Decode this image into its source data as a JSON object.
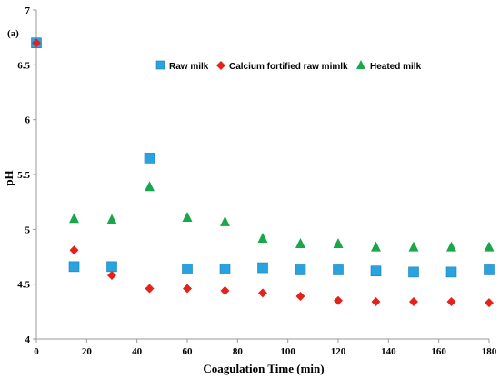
{
  "chart_data": {
    "type": "scatter",
    "panel_label": "(a)",
    "xlabel": "Coagulation Time (min)",
    "ylabel": "pH",
    "xlim": [
      0,
      180
    ],
    "ylim": [
      4,
      7
    ],
    "xticks": [
      0,
      20,
      40,
      60,
      80,
      100,
      120,
      140,
      160,
      180
    ],
    "yticks": [
      4,
      4.5,
      5,
      5.5,
      6,
      6.5,
      7
    ],
    "grid": false,
    "legend_position": "top",
    "series": [
      {
        "name": "Raw milk",
        "marker": "square",
        "color": "#29a3e0",
        "x": [
          0,
          15,
          30,
          45,
          60,
          75,
          90,
          105,
          120,
          135,
          150,
          165,
          180
        ],
        "y": [
          6.7,
          4.66,
          4.66,
          5.65,
          4.64,
          4.64,
          4.65,
          4.63,
          4.63,
          4.62,
          4.61,
          4.61,
          4.63
        ]
      },
      {
        "name": "Calcium fortified raw mimlk",
        "marker": "diamond",
        "color": "#e2231a",
        "x": [
          0,
          15,
          30,
          45,
          60,
          75,
          90,
          105,
          120,
          135,
          150,
          165,
          180
        ],
        "y": [
          6.7,
          4.81,
          4.58,
          4.46,
          4.46,
          4.44,
          4.42,
          4.39,
          4.35,
          4.34,
          4.34,
          4.34,
          4.33
        ]
      },
      {
        "name": "Heated milk",
        "marker": "triangle",
        "color": "#1aa64b",
        "x": [
          0,
          15,
          30,
          45,
          60,
          75,
          90,
          105,
          120,
          135,
          150,
          165,
          180
        ],
        "y": [
          6.7,
          5.1,
          5.09,
          5.39,
          5.11,
          5.07,
          4.92,
          4.87,
          4.87,
          4.84,
          4.84,
          4.84,
          4.84
        ]
      }
    ]
  }
}
